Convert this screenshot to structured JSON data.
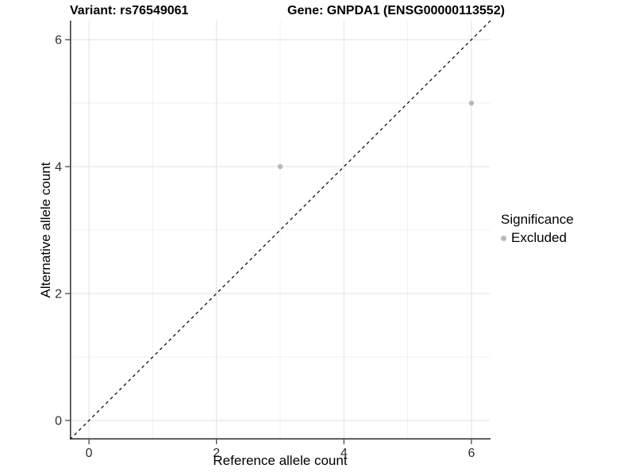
{
  "figure": {
    "title_left": "Variant: rs76549061",
    "title_right": "Gene: GNPDA1 (ENSG00000113552)"
  },
  "chart_data": {
    "type": "scatter",
    "title": "Variant: rs76549061    Gene: GNPDA1 (ENSG00000113552)",
    "xlabel": "Reference allele count",
    "ylabel": "Alternative allele count",
    "xlim": [
      -0.3,
      6.3
    ],
    "ylim": [
      -0.3,
      6.3
    ],
    "x_ticks": [
      0,
      2,
      4,
      6
    ],
    "y_ticks": [
      0,
      2,
      4,
      6
    ],
    "x_minor_ticks": [
      1,
      3,
      5
    ],
    "y_minor_ticks": [
      1,
      3,
      5
    ],
    "grid": "major+minor",
    "legend": {
      "title": "Significance",
      "position": "right",
      "entries": [
        {
          "label": "Excluded",
          "color": "#b9b9b9",
          "marker": "circle"
        }
      ]
    },
    "series": [
      {
        "name": "Excluded",
        "color": "#b9b9b9",
        "marker": "circle",
        "points": [
          {
            "x": 3,
            "y": 4
          },
          {
            "x": 6,
            "y": 5
          }
        ]
      }
    ],
    "reference_line": {
      "slope": 1,
      "intercept": 0,
      "style": "dashed",
      "color": "#111111"
    }
  },
  "colors": {
    "background": "#ffffff",
    "grid_major": "#e6e6e6",
    "grid_minor": "#f0f0f0",
    "axis_line": "#3b3b3b",
    "tick_text": "#2f2f2f",
    "point": "#b9b9b9"
  }
}
